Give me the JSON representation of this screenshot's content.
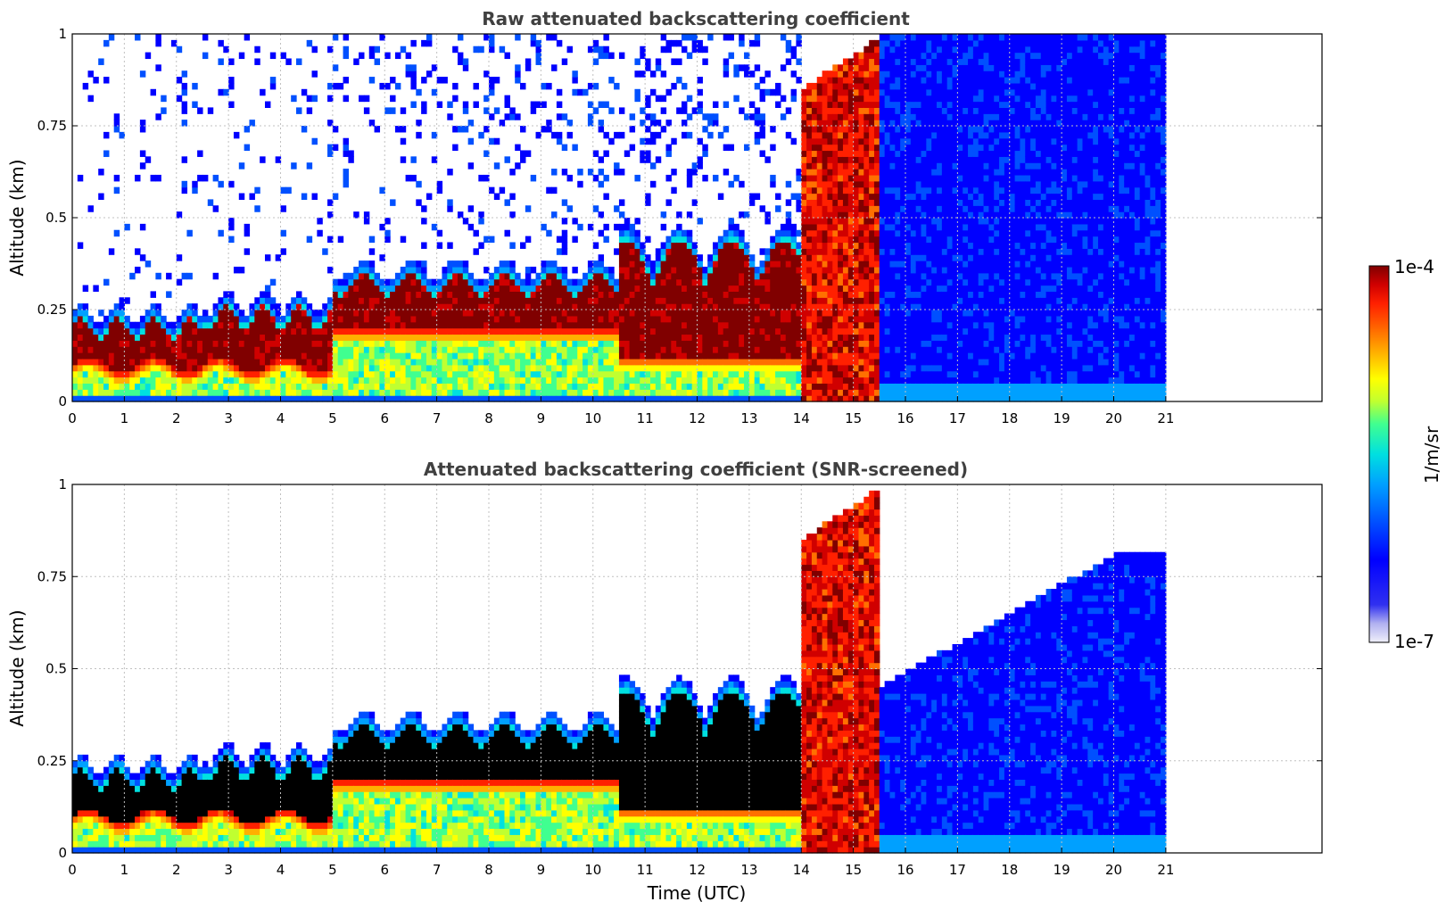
{
  "chart_data": [
    {
      "type": "heatmap",
      "title": "Raw attenuated backscattering coefficient",
      "xlabel": "",
      "ylabel": "Altitude (km)",
      "xlim": [
        0,
        24
      ],
      "ylim": [
        0,
        1
      ],
      "x_ticks": [
        "0",
        "1",
        "2",
        "3",
        "4",
        "5",
        "6",
        "7",
        "8",
        "9",
        "10",
        "11",
        "12",
        "13",
        "14",
        "15",
        "16",
        "17",
        "18",
        "19",
        "20",
        "21"
      ],
      "y_ticks": [
        "0",
        "0.25",
        "0.5",
        "0.75",
        "1"
      ],
      "grid": true,
      "data_extent_hours": [
        0,
        21
      ],
      "features": [
        {
          "time": [
            0,
            5
          ],
          "layer_top_km": [
            0.18,
            0.25
          ],
          "core_km": [
            0.05,
            0.15
          ]
        },
        {
          "time": [
            5,
            10.5
          ],
          "layer_top_km": [
            0.3,
            0.35
          ],
          "core_km": [
            0.17,
            0.3
          ]
        },
        {
          "time": [
            10.5,
            14
          ],
          "layer_top_km": [
            0.3,
            0.5
          ],
          "core_km": [
            0.1,
            0.4
          ]
        },
        {
          "time": [
            14,
            15.5
          ],
          "layer_top_km": [
            0.9,
            1.0
          ],
          "core_km": [
            0.3,
            1.0
          ]
        },
        {
          "time": [
            15.5,
            21
          ],
          "layer_top_km": [
            0.7,
            1.0
          ],
          "core_km": [
            0.0,
            0.55
          ]
        }
      ]
    },
    {
      "type": "heatmap",
      "title": "Attenuated backscattering coefficient (SNR-screened)",
      "xlabel": "Time (UTC)",
      "ylabel": "Altitude (km)",
      "xlim": [
        0,
        24
      ],
      "ylim": [
        0,
        1
      ],
      "x_ticks": [
        "0",
        "1",
        "2",
        "3",
        "4",
        "5",
        "6",
        "7",
        "8",
        "9",
        "10",
        "11",
        "12",
        "13",
        "14",
        "15",
        "16",
        "17",
        "18",
        "19",
        "20",
        "21"
      ],
      "y_ticks": [
        "0",
        "0.25",
        "0.5",
        "0.75",
        "1"
      ],
      "grid": true,
      "data_extent_hours": [
        0,
        21
      ],
      "screened": true,
      "masked_color": "#000000"
    }
  ],
  "colorbar": {
    "label": "1/m/sr",
    "max_label": "1e-4",
    "min_label": "1e-7",
    "scale": "log",
    "range": [
      1e-07,
      0.0001
    ],
    "colormap": [
      "#e8e8f8",
      "#b8b8f0",
      "#5050f0",
      "#0000ff",
      "#0050ff",
      "#00a0ff",
      "#00e0e0",
      "#40ff90",
      "#c0ff30",
      "#ffff00",
      "#ffb000",
      "#ff7000",
      "#ff2000",
      "#d00000",
      "#800000"
    ]
  }
}
